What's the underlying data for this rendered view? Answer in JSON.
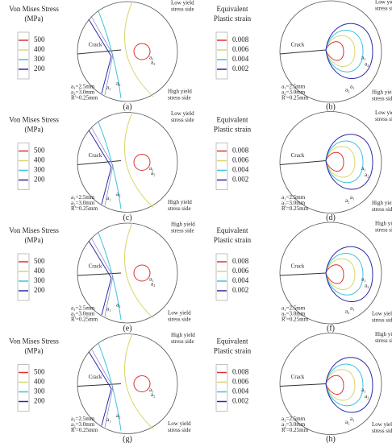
{
  "stress_legend": {
    "title": [
      "Von Mises Stress",
      "(MPa)"
    ],
    "items": [
      500,
      400,
      300,
      200
    ],
    "colors": [
      "#e03030",
      "#d9d66a",
      "#3fc3dc",
      "#2a2aa8"
    ]
  },
  "strain_legend": {
    "title": [
      "Equivalent",
      "Plastic strain"
    ],
    "items": [
      0.008,
      0.006,
      0.004,
      0.002
    ],
    "colors": [
      "#e03030",
      "#d9d66a",
      "#3fc3dc",
      "#2a2aa8"
    ]
  },
  "crack_label": "Crack",
  "curve_labels": [
    "a₁",
    "a₂"
  ],
  "params": [
    "a₁=2.5mm",
    "a₂=3.0mm",
    "R'=0.25mm"
  ],
  "panels": [
    {
      "label": "(a)",
      "top_side": [
        "Low yield",
        "stress side"
      ],
      "bottom_side": [
        "High yield",
        "stress side"
      ]
    },
    {
      "label": "(b)",
      "top_side": [
        "Low yield",
        "stress side"
      ],
      "bottom_side": [
        "High yield",
        "stress side"
      ]
    },
    {
      "label": "(c)",
      "top_side": [
        "Low yield",
        "stress side"
      ],
      "bottom_side": [
        "High yield",
        "stress side"
      ]
    },
    {
      "label": "(d)",
      "top_side": [
        "Low yield",
        "stress side"
      ],
      "bottom_side": [
        "High yield",
        "stress side"
      ]
    },
    {
      "label": "(e)",
      "top_side": [
        "High yield",
        "stress side"
      ],
      "bottom_side": [
        "Low yield",
        "stress side"
      ]
    },
    {
      "label": "(f)",
      "top_side": [
        "High yield",
        "stress side"
      ],
      "bottom_side": [
        "Low yield",
        "stress side"
      ]
    },
    {
      "label": "(g)",
      "top_side": [
        "High yield",
        "stress side"
      ],
      "bottom_side": [
        "Low yield",
        "stress side"
      ]
    },
    {
      "label": "(h)",
      "top_side": [
        "High yield",
        "stress side"
      ],
      "bottom_side": [
        "Low yield",
        "stress side"
      ]
    }
  ]
}
